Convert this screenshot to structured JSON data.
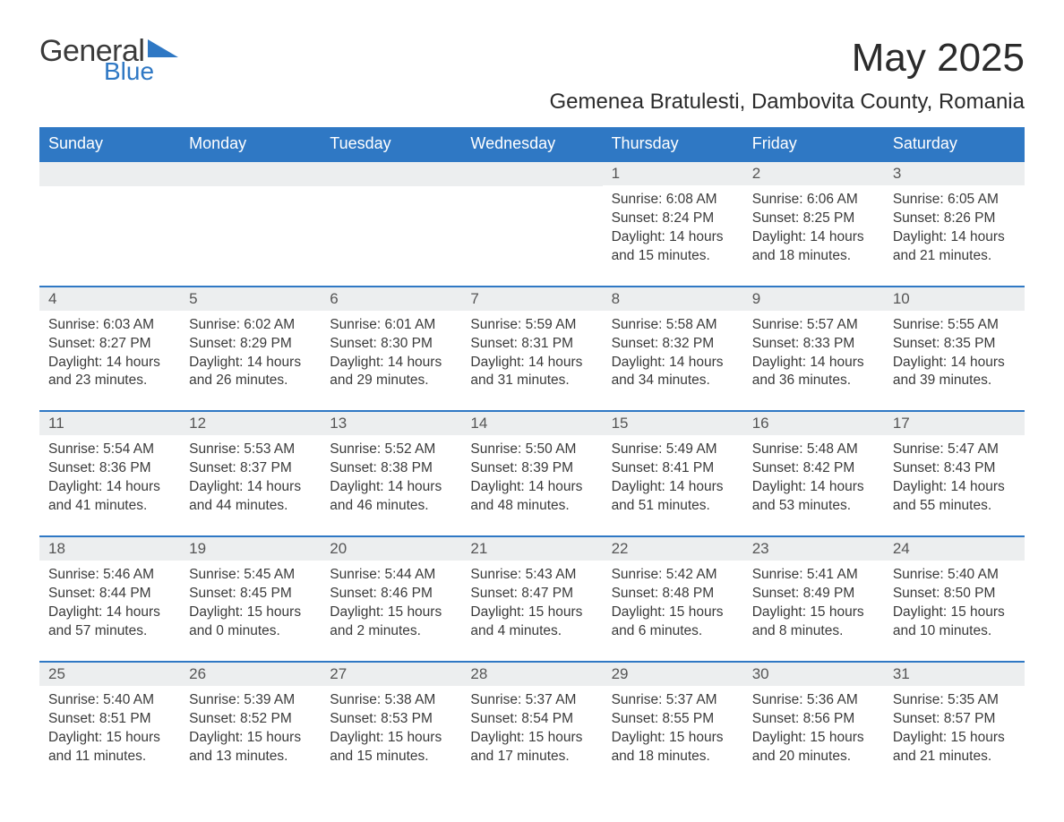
{
  "logo": {
    "word1": "General",
    "word2": "Blue",
    "word2_color": "#2f78c4",
    "tri_color": "#2f78c4"
  },
  "title": "May 2025",
  "subtitle": "Gemenea Bratulesti, Dambovita County, Romania",
  "colors": {
    "header_bg": "#2f78c4",
    "header_text": "#ffffff",
    "daynum_bg": "#eceeef",
    "row_border": "#2f78c4",
    "text": "#333333",
    "background": "#ffffff"
  },
  "calendar": {
    "type": "table",
    "columns": [
      "Sunday",
      "Monday",
      "Tuesday",
      "Wednesday",
      "Thursday",
      "Friday",
      "Saturday"
    ],
    "weeks": [
      [
        null,
        null,
        null,
        null,
        {
          "n": "1",
          "sunrise": "6:08 AM",
          "sunset": "8:24 PM",
          "daylight": "14 hours and 15 minutes."
        },
        {
          "n": "2",
          "sunrise": "6:06 AM",
          "sunset": "8:25 PM",
          "daylight": "14 hours and 18 minutes."
        },
        {
          "n": "3",
          "sunrise": "6:05 AM",
          "sunset": "8:26 PM",
          "daylight": "14 hours and 21 minutes."
        }
      ],
      [
        {
          "n": "4",
          "sunrise": "6:03 AM",
          "sunset": "8:27 PM",
          "daylight": "14 hours and 23 minutes."
        },
        {
          "n": "5",
          "sunrise": "6:02 AM",
          "sunset": "8:29 PM",
          "daylight": "14 hours and 26 minutes."
        },
        {
          "n": "6",
          "sunrise": "6:01 AM",
          "sunset": "8:30 PM",
          "daylight": "14 hours and 29 minutes."
        },
        {
          "n": "7",
          "sunrise": "5:59 AM",
          "sunset": "8:31 PM",
          "daylight": "14 hours and 31 minutes."
        },
        {
          "n": "8",
          "sunrise": "5:58 AM",
          "sunset": "8:32 PM",
          "daylight": "14 hours and 34 minutes."
        },
        {
          "n": "9",
          "sunrise": "5:57 AM",
          "sunset": "8:33 PM",
          "daylight": "14 hours and 36 minutes."
        },
        {
          "n": "10",
          "sunrise": "5:55 AM",
          "sunset": "8:35 PM",
          "daylight": "14 hours and 39 minutes."
        }
      ],
      [
        {
          "n": "11",
          "sunrise": "5:54 AM",
          "sunset": "8:36 PM",
          "daylight": "14 hours and 41 minutes."
        },
        {
          "n": "12",
          "sunrise": "5:53 AM",
          "sunset": "8:37 PM",
          "daylight": "14 hours and 44 minutes."
        },
        {
          "n": "13",
          "sunrise": "5:52 AM",
          "sunset": "8:38 PM",
          "daylight": "14 hours and 46 minutes."
        },
        {
          "n": "14",
          "sunrise": "5:50 AM",
          "sunset": "8:39 PM",
          "daylight": "14 hours and 48 minutes."
        },
        {
          "n": "15",
          "sunrise": "5:49 AM",
          "sunset": "8:41 PM",
          "daylight": "14 hours and 51 minutes."
        },
        {
          "n": "16",
          "sunrise": "5:48 AM",
          "sunset": "8:42 PM",
          "daylight": "14 hours and 53 minutes."
        },
        {
          "n": "17",
          "sunrise": "5:47 AM",
          "sunset": "8:43 PM",
          "daylight": "14 hours and 55 minutes."
        }
      ],
      [
        {
          "n": "18",
          "sunrise": "5:46 AM",
          "sunset": "8:44 PM",
          "daylight": "14 hours and 57 minutes."
        },
        {
          "n": "19",
          "sunrise": "5:45 AM",
          "sunset": "8:45 PM",
          "daylight": "15 hours and 0 minutes."
        },
        {
          "n": "20",
          "sunrise": "5:44 AM",
          "sunset": "8:46 PM",
          "daylight": "15 hours and 2 minutes."
        },
        {
          "n": "21",
          "sunrise": "5:43 AM",
          "sunset": "8:47 PM",
          "daylight": "15 hours and 4 minutes."
        },
        {
          "n": "22",
          "sunrise": "5:42 AM",
          "sunset": "8:48 PM",
          "daylight": "15 hours and 6 minutes."
        },
        {
          "n": "23",
          "sunrise": "5:41 AM",
          "sunset": "8:49 PM",
          "daylight": "15 hours and 8 minutes."
        },
        {
          "n": "24",
          "sunrise": "5:40 AM",
          "sunset": "8:50 PM",
          "daylight": "15 hours and 10 minutes."
        }
      ],
      [
        {
          "n": "25",
          "sunrise": "5:40 AM",
          "sunset": "8:51 PM",
          "daylight": "15 hours and 11 minutes."
        },
        {
          "n": "26",
          "sunrise": "5:39 AM",
          "sunset": "8:52 PM",
          "daylight": "15 hours and 13 minutes."
        },
        {
          "n": "27",
          "sunrise": "5:38 AM",
          "sunset": "8:53 PM",
          "daylight": "15 hours and 15 minutes."
        },
        {
          "n": "28",
          "sunrise": "5:37 AM",
          "sunset": "8:54 PM",
          "daylight": "15 hours and 17 minutes."
        },
        {
          "n": "29",
          "sunrise": "5:37 AM",
          "sunset": "8:55 PM",
          "daylight": "15 hours and 18 minutes."
        },
        {
          "n": "30",
          "sunrise": "5:36 AM",
          "sunset": "8:56 PM",
          "daylight": "15 hours and 20 minutes."
        },
        {
          "n": "31",
          "sunrise": "5:35 AM",
          "sunset": "8:57 PM",
          "daylight": "15 hours and 21 minutes."
        }
      ]
    ],
    "labels": {
      "sunrise": "Sunrise: ",
      "sunset": "Sunset: ",
      "daylight": "Daylight: "
    }
  }
}
